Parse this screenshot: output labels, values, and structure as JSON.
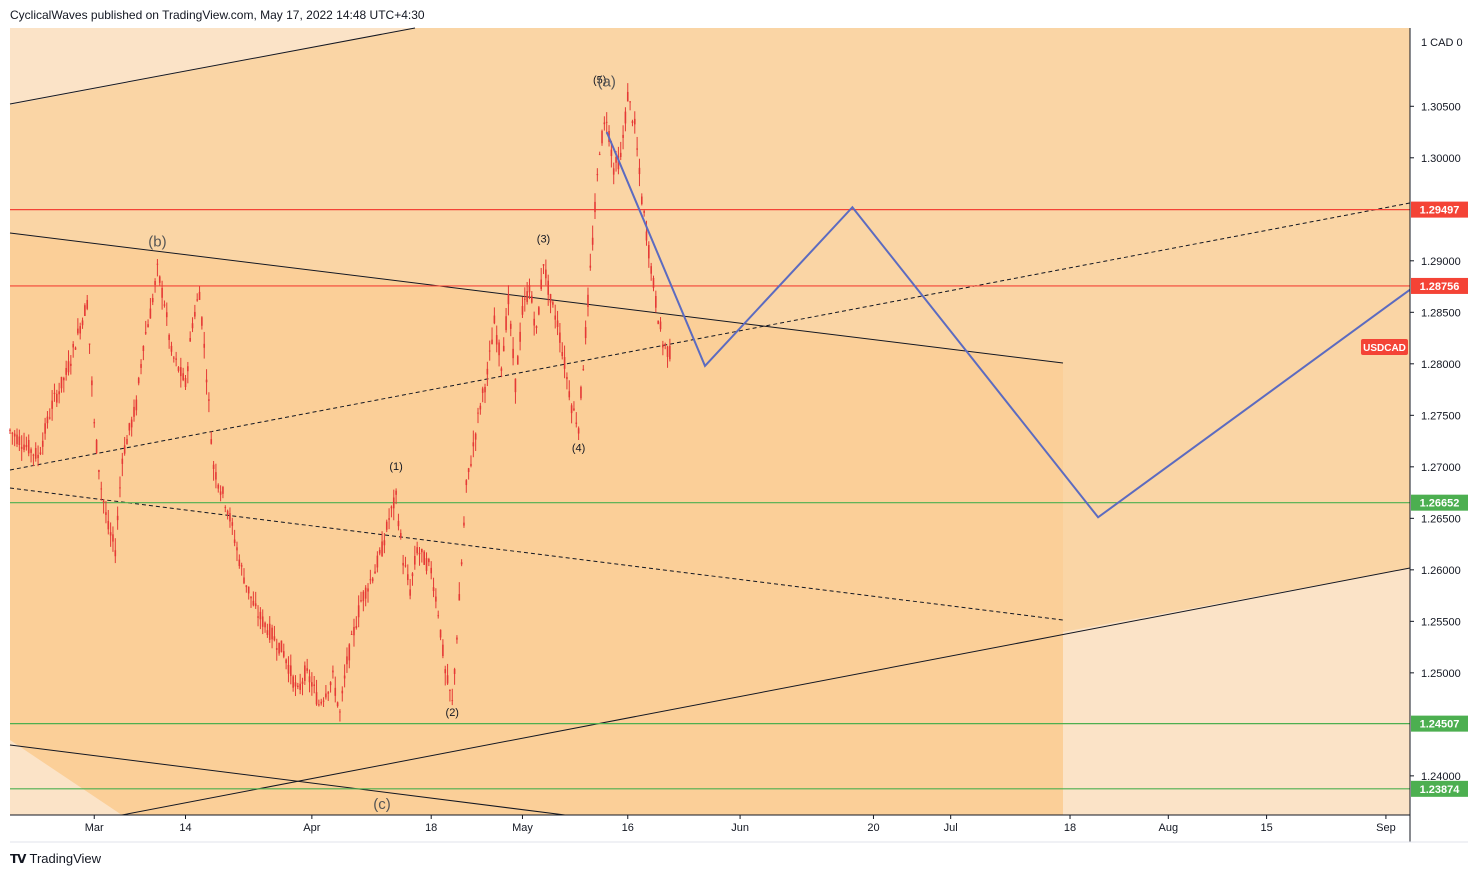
{
  "header": {
    "text": "CyclicalWaves published on TradingView.com, May 17, 2022 14:48 UTC+4:30"
  },
  "footer": {
    "logo_icon": "tradingview-logo-icon",
    "brand": "TradingView"
  },
  "colors": {
    "background_outer": "#fbe3c7",
    "background_zone": "#fad5a5",
    "background_channel": "#fbcf98",
    "candle": "#e53935",
    "resistance": "#f44336",
    "support": "#4caf50",
    "projection": "#5c6bc0",
    "trendline": "#131722"
  },
  "chart_data": {
    "type": "candlestick",
    "symbol": "USDCAD",
    "currency_label": "1 CAD 0",
    "x_tick_labels": [
      "Mar",
      "14",
      "Apr",
      "18",
      "May",
      "16",
      "Jun",
      "20",
      "Jul",
      "18",
      "Aug",
      "15",
      "Sep"
    ],
    "y_tick_labels": [
      "1.30500",
      "1.30000",
      "1.29000",
      "1.28500",
      "1.28000",
      "1.27500",
      "1.27000",
      "1.26500",
      "1.26000",
      "1.25500",
      "1.25000",
      "1.24000"
    ],
    "ylim": [
      1.2362,
      1.3126
    ],
    "price_levels": [
      {
        "value": 1.29497,
        "label": "1.29497",
        "kind": "resistance"
      },
      {
        "value": 1.28756,
        "label": "1.28756",
        "kind": "resistance"
      },
      {
        "value": 1.26652,
        "label": "1.26652",
        "kind": "support"
      },
      {
        "value": 1.24507,
        "label": "1.24507",
        "kind": "support"
      },
      {
        "value": 1.23874,
        "label": "1.23874",
        "kind": "support"
      }
    ],
    "current_price_label": "USDCAD",
    "wave_labels": [
      {
        "text": "(b)",
        "date": "2022-03-10",
        "price": 1.2914,
        "size": "large"
      },
      {
        "text": "(1)",
        "date": "2022-04-13",
        "price": 1.2697,
        "size": "small"
      },
      {
        "text": "(2)",
        "date": "2022-04-21",
        "price": 1.2458,
        "size": "small"
      },
      {
        "text": "(3)",
        "date": "2022-05-04",
        "price": 1.2918,
        "size": "small"
      },
      {
        "text": "(4)",
        "date": "2022-05-09",
        "price": 1.2715,
        "size": "small"
      },
      {
        "text": "(5)",
        "date": "2022-05-12",
        "price": 1.3072,
        "size": "small"
      },
      {
        "text": "(a)",
        "date": "2022-05-13",
        "price": 1.3069,
        "size": "large"
      },
      {
        "text": "(c)",
        "date": "2022-04-11",
        "price": 1.2368,
        "size": "large"
      }
    ],
    "ohlc_path": [
      [
        "2022-02-17",
        1.2735
      ],
      [
        "2022-02-21",
        1.271
      ],
      [
        "2022-02-23",
        1.276
      ],
      [
        "2022-02-25",
        1.279
      ],
      [
        "2022-02-28",
        1.286
      ],
      [
        "2022-03-01",
        1.274
      ],
      [
        "2022-03-02",
        1.268
      ],
      [
        "2022-03-03",
        1.264
      ],
      [
        "2022-03-04",
        1.262
      ],
      [
        "2022-03-05",
        1.271
      ],
      [
        "2022-03-07",
        1.276
      ],
      [
        "2022-03-08",
        1.282
      ],
      [
        "2022-03-09",
        1.285
      ],
      [
        "2022-03-10",
        1.289
      ],
      [
        "2022-03-11",
        1.286
      ],
      [
        "2022-03-12",
        1.281
      ],
      [
        "2022-03-14",
        1.278
      ],
      [
        "2022-03-15",
        1.284
      ],
      [
        "2022-03-16",
        1.287
      ],
      [
        "2022-03-17",
        1.279
      ],
      [
        "2022-03-18",
        1.27
      ],
      [
        "2022-03-20",
        1.266
      ],
      [
        "2022-03-22",
        1.26
      ],
      [
        "2022-03-24",
        1.256
      ],
      [
        "2022-03-26",
        1.254
      ],
      [
        "2022-03-28",
        1.252
      ],
      [
        "2022-03-30",
        1.248
      ],
      [
        "2022-03-31",
        1.25
      ],
      [
        "2022-04-01",
        1.249
      ],
      [
        "2022-04-02",
        1.247
      ],
      [
        "2022-04-04",
        1.2495
      ],
      [
        "2022-04-05",
        1.246
      ],
      [
        "2022-04-06",
        1.251
      ],
      [
        "2022-04-07",
        1.254
      ],
      [
        "2022-04-08",
        1.257
      ],
      [
        "2022-04-10",
        1.26
      ],
      [
        "2022-04-11",
        1.262
      ],
      [
        "2022-04-12",
        1.265
      ],
      [
        "2022-04-13",
        1.267
      ],
      [
        "2022-04-14",
        1.261
      ],
      [
        "2022-04-15",
        1.258
      ],
      [
        "2022-04-16",
        1.262
      ],
      [
        "2022-04-18",
        1.26
      ],
      [
        "2022-04-19",
        1.256
      ],
      [
        "2022-04-20",
        1.25
      ],
      [
        "2022-04-21",
        1.247
      ],
      [
        "2022-04-22",
        1.257
      ],
      [
        "2022-04-23",
        1.268
      ],
      [
        "2022-04-25",
        1.276
      ],
      [
        "2022-04-26",
        1.279
      ],
      [
        "2022-04-27",
        1.284
      ],
      [
        "2022-04-28",
        1.28
      ],
      [
        "2022-04-29",
        1.286
      ],
      [
        "2022-04-30",
        1.278
      ],
      [
        "2022-05-01",
        1.285
      ],
      [
        "2022-05-02",
        1.2875
      ],
      [
        "2022-05-03",
        1.283
      ],
      [
        "2022-05-04",
        1.29
      ],
      [
        "2022-05-05",
        1.286
      ],
      [
        "2022-05-06",
        1.284
      ],
      [
        "2022-05-07",
        1.28
      ],
      [
        "2022-05-08",
        1.276
      ],
      [
        "2022-05-09",
        1.274
      ],
      [
        "2022-05-10",
        1.283
      ],
      [
        "2022-05-11",
        1.292
      ],
      [
        "2022-05-12",
        1.301
      ],
      [
        "2022-05-13",
        1.304
      ],
      [
        "2022-05-14",
        1.299
      ],
      [
        "2022-05-15",
        1.3
      ],
      [
        "2022-05-16",
        1.306
      ],
      [
        "2022-05-17",
        1.303
      ],
      [
        "2022-05-18",
        1.296
      ],
      [
        "2022-05-19",
        1.291
      ],
      [
        "2022-05-20",
        1.286
      ],
      [
        "2022-05-21",
        1.282
      ],
      [
        "2022-05-22",
        1.281
      ]
    ],
    "projection_path": [
      [
        "2022-05-13",
        1.3025
      ],
      [
        "2022-05-27",
        1.2798
      ],
      [
        "2022-06-17",
        1.2952
      ],
      [
        "2022-07-22",
        1.2651
      ],
      [
        "2022-09-15",
        1.2872
      ]
    ]
  }
}
